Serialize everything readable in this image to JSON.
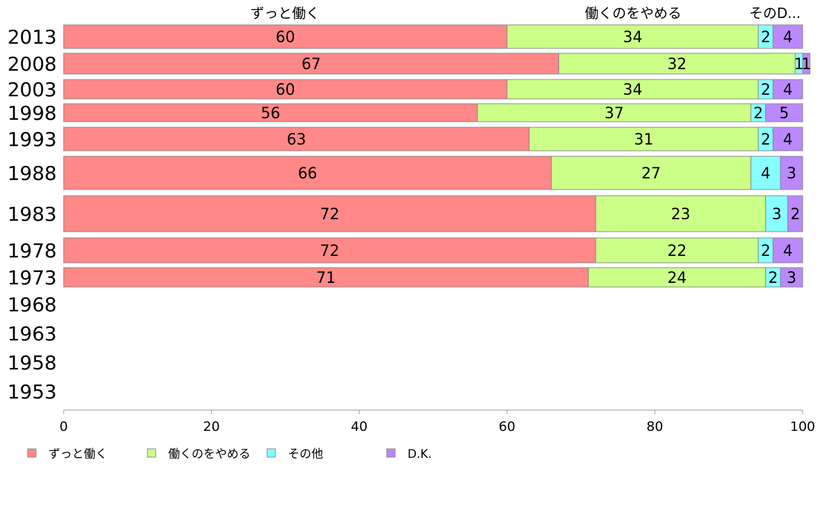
{
  "chart_data": {
    "type": "bar",
    "orientation": "horizontal",
    "stacked": true,
    "categories": [
      "2013",
      "2008",
      "2003",
      "1998",
      "1993",
      "1988",
      "1983",
      "1978",
      "1973",
      "1968",
      "1963",
      "1958",
      "1953"
    ],
    "series": [
      {
        "name": "ずっと働く",
        "color": "#ff8888",
        "values": [
          60,
          67,
          60,
          56,
          63,
          66,
          72,
          72,
          71,
          null,
          null,
          null,
          null
        ]
      },
      {
        "name": "働くのをやめる",
        "color": "#ccff88",
        "values": [
          34,
          32,
          34,
          37,
          31,
          27,
          23,
          22,
          24,
          null,
          null,
          null,
          null
        ]
      },
      {
        "name": "その他",
        "color": "#88ffff",
        "values": [
          2,
          1,
          2,
          2,
          2,
          4,
          3,
          2,
          2,
          null,
          null,
          null,
          null
        ]
      },
      {
        "name": "D.K.",
        "color": "#bb88ff",
        "values": [
          4,
          1,
          4,
          5,
          4,
          3,
          2,
          4,
          3,
          null,
          null,
          null,
          null
        ]
      }
    ],
    "top_labels": [
      "ずっと働く",
      "働くのをやめる",
      "そのD..."
    ],
    "xlim": [
      0,
      100
    ],
    "xticks": [
      "0",
      "20",
      "40",
      "60",
      "80",
      "100"
    ],
    "xlabel": "",
    "ylabel": "",
    "grid": false,
    "legend_position": "bottom"
  }
}
